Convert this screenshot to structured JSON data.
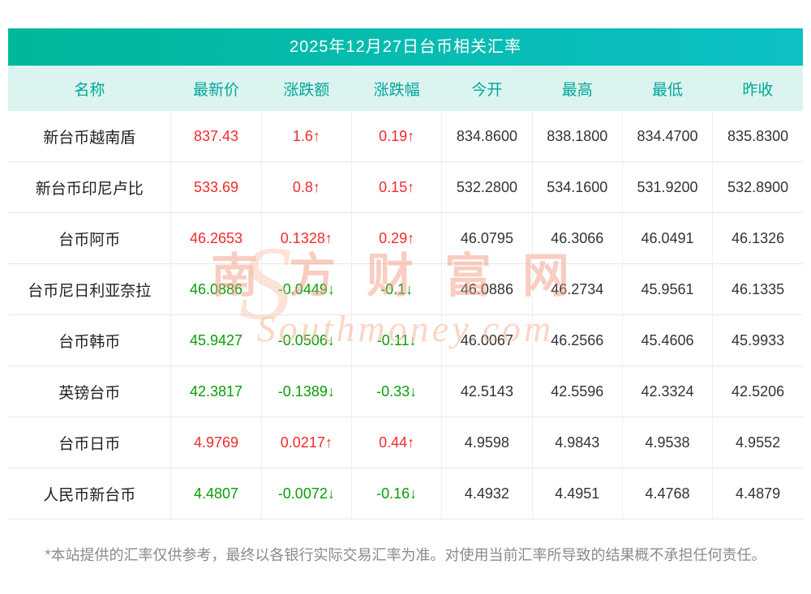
{
  "title": "2025年12月27日台币相关汇率",
  "watermark": {
    "s": "S",
    "cn": "南方财富网",
    "en": "Southmoney.com"
  },
  "footer": "*本站提供的汇率仅供参考，最终以各银行实际交易汇率为准。对使用当前汇率所导致的结果概不承担任何责任。",
  "colors": {
    "title_bg_left": "#00b79c",
    "title_bg_right": "#0cc0c4",
    "header_bg": "#dcf4ef",
    "header_text": "#00a79b",
    "up": "#f42a2a",
    "down": "#089e08"
  },
  "chart_data": {
    "type": "table",
    "title": "2025年12月27日台币相关汇率",
    "headers": [
      "名称",
      "最新价",
      "涨跌额",
      "涨跌幅",
      "今开",
      "最高",
      "最低",
      "昨收"
    ],
    "rows": [
      {
        "name": "新台币越南盾",
        "price": "837.43",
        "change": "1.6↑",
        "pct": "0.19↑",
        "open": "834.8600",
        "high": "838.1800",
        "low": "834.4700",
        "prev": "835.8300",
        "dir": "up"
      },
      {
        "name": "新台币印尼卢比",
        "price": "533.69",
        "change": "0.8↑",
        "pct": "0.15↑",
        "open": "532.2800",
        "high": "534.1600",
        "low": "531.9200",
        "prev": "532.8900",
        "dir": "up"
      },
      {
        "name": "台币阿币",
        "price": "46.2653",
        "change": "0.1328↑",
        "pct": "0.29↑",
        "open": "46.0795",
        "high": "46.3066",
        "low": "46.0491",
        "prev": "46.1326",
        "dir": "up"
      },
      {
        "name": "台币尼日利亚奈拉",
        "price": "46.0886",
        "change": "-0.0449↓",
        "pct": "-0.1↓",
        "open": "46.0886",
        "high": "46.2734",
        "low": "45.9561",
        "prev": "46.1335",
        "dir": "down"
      },
      {
        "name": "台币韩币",
        "price": "45.9427",
        "change": "-0.0506↓",
        "pct": "-0.11↓",
        "open": "46.0067",
        "high": "46.2566",
        "low": "45.4606",
        "prev": "45.9933",
        "dir": "down"
      },
      {
        "name": "英镑台币",
        "price": "42.3817",
        "change": "-0.1389↓",
        "pct": "-0.33↓",
        "open": "42.5143",
        "high": "42.5596",
        "low": "42.3324",
        "prev": "42.5206",
        "dir": "down"
      },
      {
        "name": "台币日币",
        "price": "4.9769",
        "change": "0.0217↑",
        "pct": "0.44↑",
        "open": "4.9598",
        "high": "4.9843",
        "low": "4.9538",
        "prev": "4.9552",
        "dir": "up"
      },
      {
        "name": "人民币新台币",
        "price": "4.4807",
        "change": "-0.0072↓",
        "pct": "-0.16↓",
        "open": "4.4932",
        "high": "4.4951",
        "low": "4.4768",
        "prev": "4.4879",
        "dir": "down"
      }
    ]
  }
}
